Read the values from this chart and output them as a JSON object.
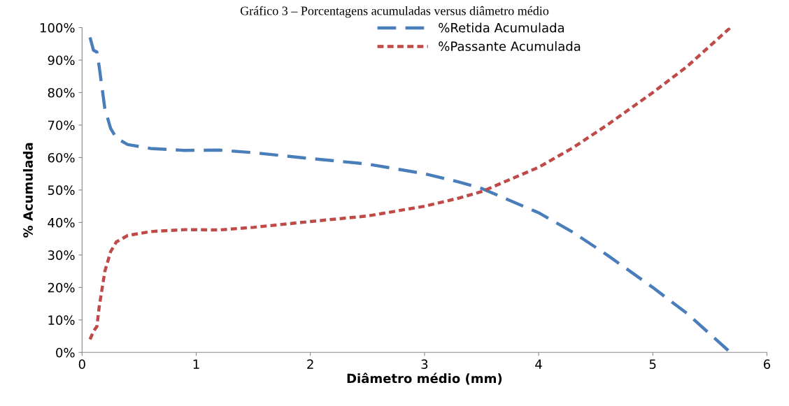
{
  "chart_data": {
    "type": "line",
    "title": "Gráfico 3 – Porcentagens acumuladas versus diâmetro médio",
    "xlabel": "Diâmetro médio (mm)",
    "ylabel": "% Acumulada",
    "series": [
      {
        "name": "%Retida Acumulada",
        "color": "#4a7ebb",
        "line_style": "dashed",
        "x": [
          0.07,
          0.1,
          0.13,
          0.15,
          0.2,
          0.25,
          0.3,
          0.4,
          0.6,
          0.9,
          1.2,
          1.5,
          2,
          2.5,
          3,
          3.3,
          3.5,
          3.8,
          4,
          4.3,
          4.6,
          5,
          5.3,
          5.68
        ],
        "values": [
          97,
          93,
          92.5,
          88,
          75,
          69,
          66,
          64,
          62.8,
          62.2,
          62.3,
          61.5,
          59.7,
          58,
          55,
          52.5,
          50.5,
          46,
          43,
          37,
          30,
          20,
          12,
          0
        ]
      },
      {
        "name": "%Passante Acumulada",
        "color": "#be4b48",
        "line_style": "dotted",
        "x": [
          0.07,
          0.1,
          0.13,
          0.15,
          0.2,
          0.25,
          0.3,
          0.4,
          0.6,
          0.9,
          1.2,
          1.5,
          2,
          2.5,
          3,
          3.3,
          3.5,
          3.8,
          4,
          4.3,
          4.6,
          5,
          5.3,
          5.68
        ],
        "values": [
          4,
          6.5,
          8,
          14,
          25,
          31,
          34,
          36,
          37.2,
          37.8,
          37.7,
          38.5,
          40.3,
          42,
          45,
          47.5,
          49.5,
          54,
          57,
          63,
          70,
          80,
          88,
          100
        ]
      }
    ],
    "xlim": [
      0,
      6
    ],
    "xticks": [
      0,
      1,
      2,
      3,
      4,
      5,
      6
    ],
    "ylim": [
      0,
      100
    ],
    "yticks": [
      {
        "value": 0,
        "label": "0%"
      },
      {
        "value": 10,
        "label": "10%"
      },
      {
        "value": 20,
        "label": "20%"
      },
      {
        "value": 30,
        "label": "30%"
      },
      {
        "value": 40,
        "label": "40%"
      },
      {
        "value": 50,
        "label": "50%"
      },
      {
        "value": 60,
        "label": "60%"
      },
      {
        "value": 70,
        "label": "70%"
      },
      {
        "value": 80,
        "label": "80%"
      },
      {
        "value": 90,
        "label": "90%"
      },
      {
        "value": 100,
        "label": "100%"
      }
    ],
    "grid": false,
    "legend": "top",
    "marker": "none"
  }
}
